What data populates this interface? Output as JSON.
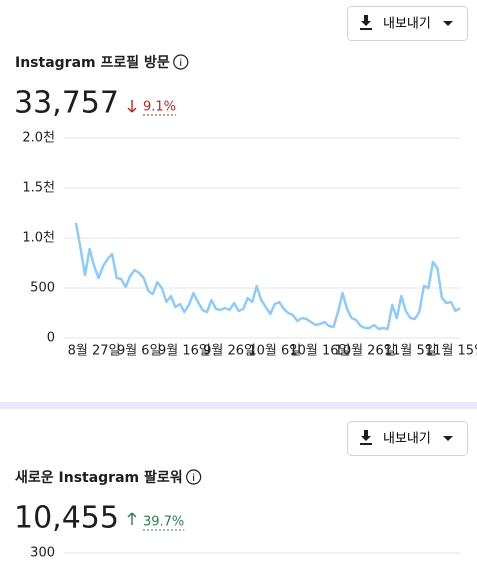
{
  "chart_data": [
    {
      "type": "line",
      "export_label": "내보내기",
      "title": "Instagram 프로필 방문",
      "total": "33,757",
      "change": "9.1%",
      "change_direction": "down",
      "categories": [
        null,
        null,
        null,
        null,
        "8월 27일",
        null,
        null,
        null,
        null,
        null,
        null,
        null,
        null,
        null,
        "9월 6일",
        null,
        null,
        null,
        null,
        null,
        null,
        null,
        null,
        null,
        "9월 16일",
        null,
        null,
        null,
        null,
        null,
        null,
        null,
        null,
        null,
        "9월 26일",
        null,
        null,
        null,
        null,
        null,
        null,
        null,
        null,
        null,
        "10월 6일",
        null,
        null,
        null,
        null,
        null,
        null,
        null,
        null,
        null,
        "10월 16일",
        null,
        null,
        null,
        null,
        null,
        null,
        null,
        null,
        null,
        "10월 26일",
        null,
        null,
        null,
        null,
        null,
        null,
        null,
        null,
        null,
        "11월 5일",
        null,
        null,
        null,
        null,
        null,
        null,
        null,
        null,
        null,
        "11월 15일",
        null
      ],
      "values": [
        1150,
        900,
        630,
        890,
        720,
        600,
        720,
        790,
        840,
        600,
        590,
        510,
        620,
        680,
        650,
        600,
        470,
        440,
        560,
        500,
        360,
        420,
        310,
        340,
        260,
        330,
        450,
        360,
        280,
        260,
        380,
        290,
        280,
        300,
        280,
        350,
        270,
        290,
        400,
        360,
        520,
        380,
        310,
        240,
        340,
        360,
        290,
        250,
        230,
        170,
        200,
        190,
        160,
        130,
        140,
        160,
        120,
        110,
        260,
        450,
        290,
        200,
        180,
        120,
        100,
        100,
        130,
        90,
        100,
        90,
        330,
        200,
        420,
        270,
        200,
        190,
        260,
        520,
        500,
        760,
        700,
        400,
        350,
        360,
        270,
        300
      ],
      "color": "#90cbf7",
      "ylim": [
        0,
        2000
      ],
      "yticks": [
        0,
        500,
        {
          "value": 1000,
          "label": "1.0천"
        },
        {
          "value": 1500,
          "label": "1.5천"
        },
        {
          "value": 2000,
          "label": "2.0천"
        }
      ],
      "grid": true
    },
    {
      "type": "line",
      "export_label": "내보내기",
      "title": "새로운 Instagram 팔로워",
      "total": "10,455",
      "change": "39.7%",
      "change_direction": "up",
      "yticks": [
        300
      ],
      "grid": true
    }
  ]
}
